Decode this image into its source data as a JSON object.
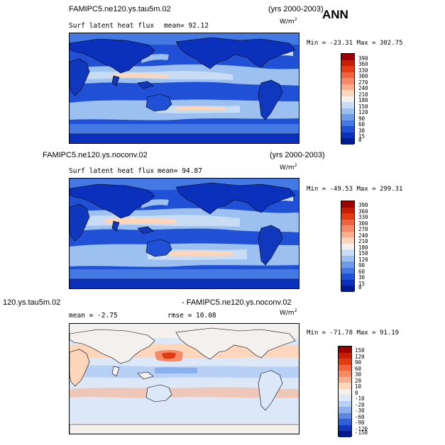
{
  "annual_label": "ANN",
  "panels": [
    {
      "case": "FAMIPC5.ne120.ys.tau5m.02",
      "years": "(yrs 2000-2003)",
      "variable": "Surf latent heat flux",
      "stat": "mean=  92.12",
      "units": "W/m",
      "units_exp": "2",
      "minmax": "Min = -23.31 Max = 302.75",
      "levels": [
        "390",
        "360",
        "330",
        "300",
        "270",
        "240",
        "210",
        "180",
        "150",
        "120",
        "90",
        "60",
        "30",
        "15",
        "0"
      ]
    },
    {
      "case": "FAMIPC5.ne120.ys.noconv.02",
      "years": "(yrs 2000-2003)",
      "variable": "Surf latent heat flux",
      "stat": "mean=  94.87",
      "units": "W/m",
      "units_exp": "2",
      "minmax": "Min = -49.53 Max = 299.31",
      "levels": [
        "390",
        "360",
        "330",
        "300",
        "270",
        "240",
        "210",
        "180",
        "150",
        "120",
        "90",
        "60",
        "30",
        "15",
        "0"
      ]
    },
    {
      "case_left": "120.ys.tau5m.02",
      "case_right": "- FAMIPC5.ne120.ys.noconv.02",
      "stat": "mean =  -2.75",
      "rmse": "rmse =  10.08",
      "units": "W/m",
      "units_exp": "2",
      "minmax": "Min = -71.78 Max =  91.19",
      "levels": [
        "150",
        "120",
        "90",
        "60",
        "30",
        "20",
        "10",
        "0",
        "-10",
        "-20",
        "-30",
        "-60",
        "-90",
        "-120",
        "-150"
      ]
    }
  ],
  "colors": {
    "abs_scale": [
      "#9b0000",
      "#c81e00",
      "#e03c14",
      "#ee6440",
      "#f58a68",
      "#fab090",
      "#fdd6bc",
      "#f4f0ee",
      "#c8dcf4",
      "#9cc0f0",
      "#6e9cea",
      "#4478e2",
      "#2050d6",
      "#0a30bc",
      "#001a8e"
    ],
    "diff_scale": [
      "#9b0000",
      "#c81e00",
      "#e03c14",
      "#ee6440",
      "#f58a68",
      "#fab090",
      "#fdd6bc",
      "#f4f0ee",
      "#dce8f8",
      "#b8d0f4",
      "#8cb0ee",
      "#5c88e4",
      "#3060d8",
      "#1038bc",
      "#001a8e"
    ]
  }
}
